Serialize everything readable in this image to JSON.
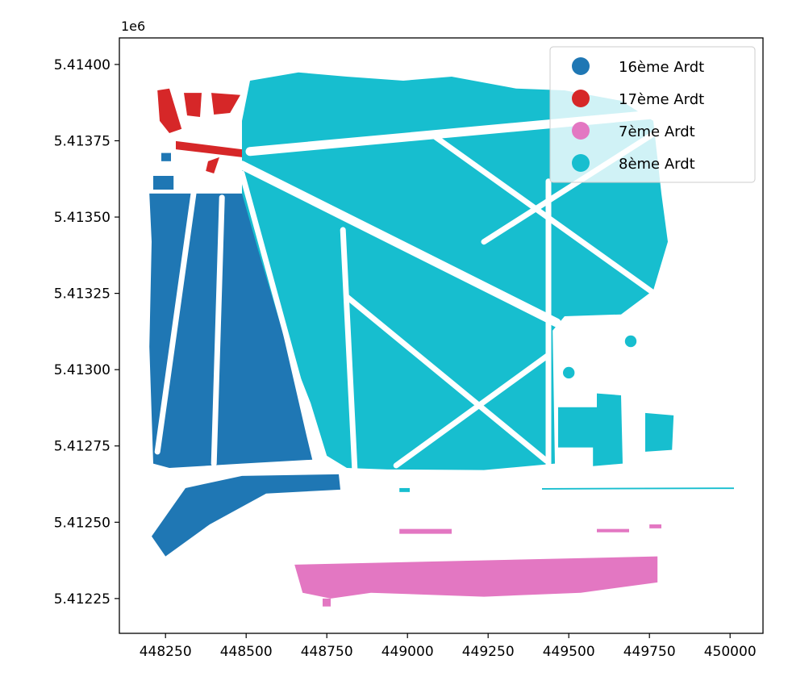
{
  "chart_data": {
    "type": "map",
    "title": "",
    "xlabel": "",
    "ylabel": "",
    "y_offset_label": "1e6",
    "xlim": [
      448107,
      450102
    ],
    "ylim": [
      5412136,
      5414087
    ],
    "x_ticks": [
      448250,
      448500,
      448750,
      449000,
      449250,
      449500,
      449750,
      450000
    ],
    "x_tick_labels": [
      "448250",
      "448500",
      "448750",
      "449000",
      "449250",
      "449500",
      "449750",
      "450000"
    ],
    "y_ticks": [
      5414000,
      5413750,
      5413500,
      5413250,
      5413000,
      5412750,
      5412500,
      5412250
    ],
    "y_tick_labels": [
      "5.41400",
      "5.41375",
      "5.41350",
      "5.41325",
      "5.41300",
      "5.41275",
      "5.41250",
      "5.41225"
    ],
    "grid": false,
    "legend": {
      "placement": "top-right",
      "entries": [
        {
          "label": "16ème Ardt",
          "color": "#1f77b4"
        },
        {
          "label": "17ème Ardt",
          "color": "#d62728"
        },
        {
          "label": "7ème Ardt",
          "color": "#e377c2"
        },
        {
          "label": "8ème Ardt",
          "color": "#17becf"
        }
      ]
    },
    "series": [
      {
        "name": "8ème Ardt",
        "color": "#17becf",
        "polygons": [
          [
            [
              448512,
              5413947
            ],
            [
              448662,
              5413974
            ],
            [
              448812,
              5413960
            ],
            [
              448987,
              5413947
            ],
            [
              449137,
              5413960
            ],
            [
              449337,
              5413921
            ],
            [
              449487,
              5413915
            ],
            [
              449662,
              5413881
            ],
            [
              449762,
              5413815
            ],
            [
              449787,
              5413577
            ],
            [
              449807,
              5413419
            ],
            [
              449762,
              5413260
            ],
            [
              449662,
              5413181
            ],
            [
              449487,
              5413175
            ],
            [
              449450,
              5413128
            ],
            [
              449457,
              5412692
            ],
            [
              449237,
              5412671
            ],
            [
              448937,
              5412673
            ],
            [
              448812,
              5412678
            ],
            [
              448750,
              5412718
            ],
            [
              448700,
              5412890
            ],
            [
              448612,
              5413128
            ],
            [
              448525,
              5413392
            ],
            [
              448487,
              5413551
            ],
            [
              448487,
              5413683
            ],
            [
              448487,
              5413815
            ]
          ],
          [
            [
              449467,
              5412877
            ],
            [
              449587,
              5412877
            ],
            [
              449587,
              5412922
            ],
            [
              449662,
              5412916
            ],
            [
              449667,
              5412692
            ],
            [
              449575,
              5412684
            ],
            [
              449575,
              5412745
            ],
            [
              449467,
              5412745
            ]
          ],
          [
            [
              449737,
              5412858
            ],
            [
              449825,
              5412850
            ],
            [
              449820,
              5412737
            ],
            [
              449737,
              5412731
            ]
          ],
          [
            [
              448975,
              5412612
            ],
            [
              449007,
              5412612
            ],
            [
              449007,
              5412599
            ],
            [
              448975,
              5412599
            ]
          ],
          [
            [
              449417,
              5412612
            ],
            [
              450012,
              5412614
            ],
            [
              450012,
              5412609
            ],
            [
              449417,
              5412607
            ]
          ]
        ],
        "circles": [
          [
            449500,
            5412990,
            18
          ],
          [
            449692,
            5413093,
            18
          ]
        ]
      },
      {
        "name": "16ème Ardt",
        "color": "#1f77b4",
        "polygons": [
          [
            [
              448200,
              5413577
            ],
            [
              448487,
              5413577
            ],
            [
              448537,
              5413392
            ],
            [
              448612,
              5413128
            ],
            [
              448687,
              5412784
            ],
            [
              448705,
              5412705
            ],
            [
              448487,
              5412692
            ],
            [
              448262,
              5412678
            ],
            [
              448212,
              5412692
            ],
            [
              448200,
              5413075
            ],
            [
              448207,
              5413419
            ]
          ],
          [
            [
              448207,
              5412454
            ],
            [
              448312,
              5412612
            ],
            [
              448487,
              5412652
            ],
            [
              448787,
              5412657
            ],
            [
              448792,
              5412607
            ],
            [
              448562,
              5412594
            ],
            [
              448387,
              5412493
            ],
            [
              448250,
              5412388
            ]
          ],
          [
            [
              448212,
              5413635
            ],
            [
              448275,
              5413635
            ],
            [
              448275,
              5413590
            ],
            [
              448212,
              5413590
            ]
          ],
          [
            [
              448237,
              5413710
            ],
            [
              448267,
              5413710
            ],
            [
              448267,
              5413683
            ],
            [
              448237,
              5413683
            ]
          ]
        ]
      },
      {
        "name": "17ème Ardt",
        "color": "#d62728",
        "polygons": [
          [
            [
              448225,
              5413915
            ],
            [
              448262,
              5413921
            ],
            [
              448300,
              5413789
            ],
            [
              448262,
              5413775
            ],
            [
              448232,
              5413815
            ]
          ],
          [
            [
              448307,
              5413907
            ],
            [
              448362,
              5413907
            ],
            [
              448357,
              5413828
            ],
            [
              448317,
              5413833
            ]
          ],
          [
            [
              448392,
              5413907
            ],
            [
              448482,
              5413900
            ],
            [
              448450,
              5413841
            ],
            [
              448400,
              5413836
            ]
          ],
          [
            [
              448282,
              5413749
            ],
            [
              448487,
              5413722
            ],
            [
              448487,
              5413696
            ],
            [
              448282,
              5413722
            ]
          ],
          [
            [
              448382,
              5413683
            ],
            [
              448417,
              5413696
            ],
            [
              448400,
              5413643
            ],
            [
              448375,
              5413651
            ]
          ]
        ]
      },
      {
        "name": "7ème Ardt",
        "color": "#e377c2",
        "polygons": [
          [
            [
              448650,
              5412361
            ],
            [
              449775,
              5412388
            ],
            [
              449775,
              5412303
            ],
            [
              449537,
              5412269
            ],
            [
              449237,
              5412256
            ],
            [
              448887,
              5412269
            ],
            [
              448762,
              5412250
            ],
            [
              448675,
              5412269
            ]
          ],
          [
            [
              448737,
              5412250
            ],
            [
              448762,
              5412250
            ],
            [
              448762,
              5412224
            ],
            [
              448737,
              5412224
            ]
          ],
          [
            [
              448975,
              5412478
            ],
            [
              449137,
              5412478
            ],
            [
              449137,
              5412462
            ],
            [
              448975,
              5412462
            ]
          ],
          [
            [
              449587,
              5412478
            ],
            [
              449687,
              5412478
            ],
            [
              449687,
              5412467
            ],
            [
              449587,
              5412467
            ]
          ],
          [
            [
              449750,
              5412493
            ],
            [
              449787,
              5412493
            ],
            [
              449787,
              5412480
            ],
            [
              449750,
              5412480
            ]
          ]
        ]
      }
    ],
    "streets": [
      [
        [
          448487,
          5413670
        ],
        [
          449462,
          5413154
        ]
      ],
      [
        [
          448512,
          5413715
        ],
        [
          449812,
          5413841
        ]
      ],
      [
        [
          449437,
          5413617
        ],
        [
          449437,
          5412678
        ]
      ],
      [
        [
          448800,
          5413458
        ],
        [
          448837,
          5412665
        ]
      ],
      [
        [
          448487,
          5413643
        ],
        [
          448737,
          5412678
        ]
      ],
      [
        [
          448965,
          5412686
        ],
        [
          449437,
          5413048
        ]
      ],
      [
        [
          448812,
          5413239
        ],
        [
          449430,
          5412702
        ]
      ],
      [
        [
          448425,
          5413564
        ],
        [
          448400,
          5412692
        ]
      ],
      [
        [
          448337,
          5413577
        ],
        [
          448225,
          5412731
        ]
      ],
      [
        [
          449087,
          5413762
        ],
        [
          449787,
          5413233
        ]
      ],
      [
        [
          449237,
          5413419
        ],
        [
          449787,
          5413789
        ]
      ]
    ]
  }
}
